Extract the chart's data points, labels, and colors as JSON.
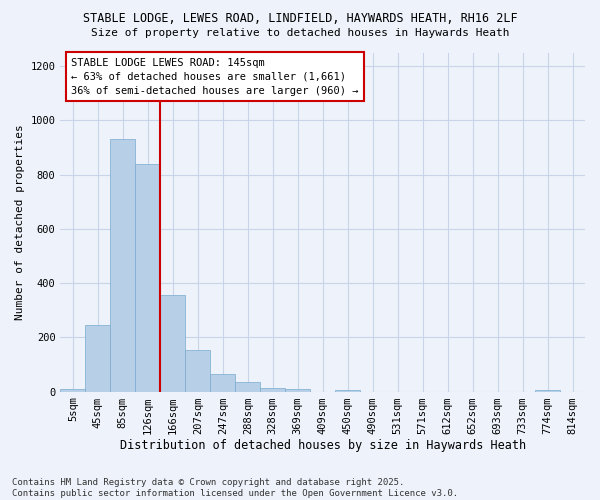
{
  "title_line1": "STABLE LODGE, LEWES ROAD, LINDFIELD, HAYWARDS HEATH, RH16 2LF",
  "title_line2": "Size of property relative to detached houses in Haywards Heath",
  "xlabel": "Distribution of detached houses by size in Haywards Heath",
  "ylabel": "Number of detached properties",
  "footnote_line1": "Contains HM Land Registry data © Crown copyright and database right 2025.",
  "footnote_line2": "Contains public sector information licensed under the Open Government Licence v3.0.",
  "annotation_line1": "STABLE LODGE LEWES ROAD: 145sqm",
  "annotation_line2": "← 63% of detached houses are smaller (1,661)",
  "annotation_line3": "36% of semi-detached houses are larger (960) →",
  "bar_color": "#b8cfe8",
  "bar_edge_color": "#7aaad0",
  "vline_color": "#cc0000",
  "vline_x": 3.5,
  "categories": [
    "5sqm",
    "45sqm",
    "85sqm",
    "126sqm",
    "166sqm",
    "207sqm",
    "247sqm",
    "288sqm",
    "328sqm",
    "369sqm",
    "409sqm",
    "450sqm",
    "490sqm",
    "531sqm",
    "571sqm",
    "612sqm",
    "652sqm",
    "693sqm",
    "733sqm",
    "774sqm",
    "814sqm"
  ],
  "values": [
    8,
    247,
    930,
    840,
    355,
    155,
    65,
    35,
    15,
    10,
    0,
    5,
    0,
    0,
    0,
    0,
    0,
    0,
    0,
    5,
    0
  ],
  "ylim": [
    0,
    1250
  ],
  "yticks": [
    0,
    200,
    400,
    600,
    800,
    1000,
    1200
  ],
  "background_color": "#eef2fa",
  "plot_bg_color": "#eef2fa",
  "grid_color": "#c8d4e8",
  "annotation_box_color": "#ffffff",
  "annotation_box_edge_color": "#cc0000",
  "title_fontsize": 8.5,
  "subtitle_fontsize": 8.0,
  "tick_fontsize": 7.5,
  "ylabel_fontsize": 8.0,
  "xlabel_fontsize": 8.5,
  "footnote_fontsize": 6.5
}
